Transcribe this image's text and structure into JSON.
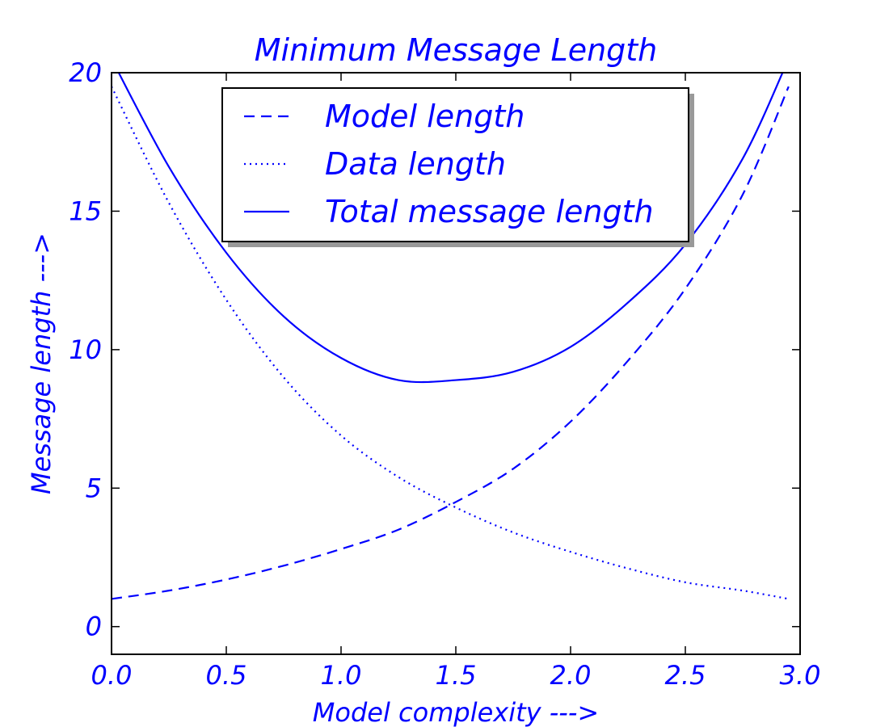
{
  "chart_data": {
    "type": "line",
    "title": "Minimum Message Length",
    "xlabel": "Model complexity --->",
    "ylabel": "Message length --->",
    "xlim": [
      0.0,
      3.0
    ],
    "ylim": [
      -1,
      20
    ],
    "xticks": [
      0.0,
      0.5,
      1.0,
      1.5,
      2.0,
      2.5,
      3.0
    ],
    "xtick_labels": [
      "0.0",
      "0.5",
      "1.0",
      "1.5",
      "2.0",
      "2.5",
      "3.0"
    ],
    "yticks": [
      0,
      5,
      10,
      15,
      20
    ],
    "ytick_labels": [
      "0",
      "5",
      "10",
      "15",
      "20"
    ],
    "grid": false,
    "legend": {
      "position": "top-center",
      "shadow": true
    },
    "colors": {
      "series": "#0000ff",
      "axes": "#000000",
      "shadow": "#999999"
    },
    "series": [
      {
        "name": "Model length",
        "style": "dashed",
        "x": [
          0.0,
          0.25,
          0.5,
          0.75,
          1.0,
          1.25,
          1.5,
          1.75,
          2.0,
          2.25,
          2.5,
          2.75,
          2.95
        ],
        "y": [
          1.0,
          1.3,
          1.7,
          2.2,
          2.8,
          3.5,
          4.5,
          5.7,
          7.4,
          9.6,
          12.2,
          15.6,
          19.5
        ]
      },
      {
        "name": "Data length",
        "style": "dotted",
        "x": [
          0.0,
          0.25,
          0.5,
          0.75,
          1.0,
          1.25,
          1.5,
          1.75,
          2.0,
          2.25,
          2.5,
          2.75,
          2.95
        ],
        "y": [
          19.5,
          15.3,
          11.8,
          9.0,
          6.9,
          5.4,
          4.3,
          3.4,
          2.7,
          2.1,
          1.6,
          1.3,
          1.0
        ]
      },
      {
        "name": "Total message length",
        "style": "solid",
        "x": [
          0.0,
          0.25,
          0.5,
          0.75,
          1.0,
          1.25,
          1.5,
          1.75,
          2.0,
          2.25,
          2.5,
          2.75,
          2.95
        ],
        "y": [
          20.5,
          16.6,
          13.5,
          11.2,
          9.7,
          8.9,
          8.9,
          9.2,
          10.1,
          11.7,
          13.8,
          16.9,
          20.5
        ]
      }
    ]
  }
}
